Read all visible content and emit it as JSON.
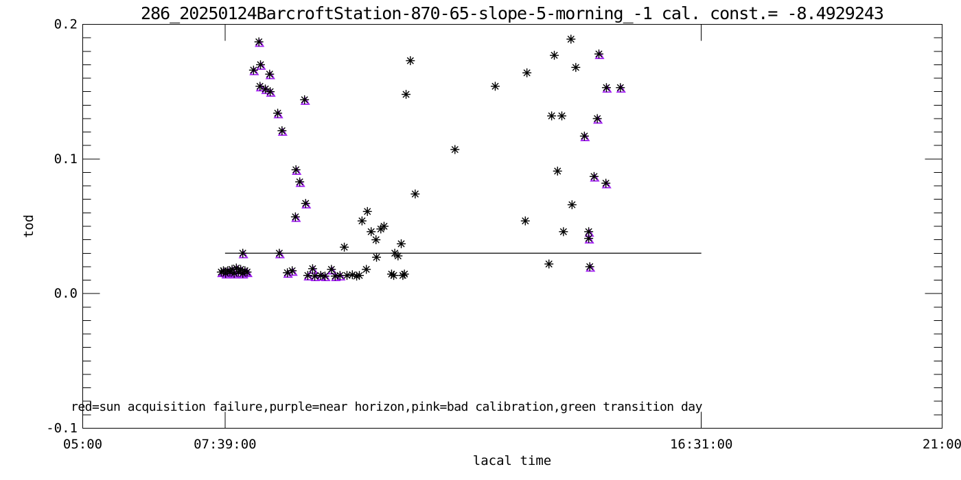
{
  "title": "286_20250124BarcroftStation-870-65-slope-5-morning_-1 cal. const.= -8.4929243",
  "annotation": "red=sun acquisition failure,purple=near horizon,pink=bad calibration,green transition day",
  "calibration_constant": "-8.4929243",
  "colors": {
    "axis": "#000000",
    "black_marker": "#000000",
    "purple_marker": "#A020F0",
    "background": "#ffffff",
    "text": "#000000"
  },
  "chart_data": {
    "type": "scatter",
    "title": "286_20250124BarcroftStation-870-65-slope-5-morning_-1 cal. const.= -8.4929243",
    "xlabel": "lacal time",
    "ylabel": "tod",
    "xlim_hours": [
      5,
      21
    ],
    "ylim": [
      -0.1,
      0.2
    ],
    "grid": false,
    "x_ticks": [
      {
        "t": 5.0,
        "label": "05:00"
      },
      {
        "t": 7.65,
        "label": "07:39:00"
      },
      {
        "t": 16.517,
        "label": "16:31:00"
      },
      {
        "t": 21.0,
        "label": "21:00"
      }
    ],
    "y_ticks": [
      {
        "v": -0.1,
        "label": "-0.1"
      },
      {
        "v": 0.0,
        "label": "0.0"
      },
      {
        "v": 0.1,
        "label": "0.1"
      },
      {
        "v": 0.2,
        "label": "0.2"
      }
    ],
    "y_minor_step": 0.01,
    "reference_line": {
      "v": 0.03,
      "t_start": 7.65,
      "t_end": 16.517
    },
    "legend_note": "red=sun acquisition failure,purple=near horizon,pink=bad calibration,green transition day",
    "series": [
      {
        "name": "near horizon (purple triangle under black asterisk)",
        "marker": "triangle+asterisk",
        "color": "#A020F0",
        "points": [
          [
            7.58,
            0.016
          ],
          [
            7.62,
            0.017
          ],
          [
            7.66,
            0.015
          ],
          [
            7.7,
            0.017
          ],
          [
            7.74,
            0.016
          ],
          [
            7.78,
            0.018
          ],
          [
            7.82,
            0.015
          ],
          [
            7.86,
            0.019
          ],
          [
            7.9,
            0.016
          ],
          [
            7.94,
            0.018
          ],
          [
            7.98,
            0.015
          ],
          [
            8.02,
            0.017
          ],
          [
            8.06,
            0.016
          ],
          [
            7.98,
            0.03
          ],
          [
            8.66,
            0.03
          ],
          [
            8.28,
            0.187
          ],
          [
            8.18,
            0.166
          ],
          [
            8.31,
            0.17
          ],
          [
            8.48,
            0.163
          ],
          [
            8.3,
            0.154
          ],
          [
            8.4,
            0.152
          ],
          [
            8.49,
            0.15
          ],
          [
            9.13,
            0.144
          ],
          [
            8.63,
            0.134
          ],
          [
            8.71,
            0.121
          ],
          [
            8.97,
            0.092
          ],
          [
            9.04,
            0.083
          ],
          [
            9.15,
            0.067
          ],
          [
            8.96,
            0.057
          ],
          [
            8.81,
            0.0155
          ],
          [
            8.9,
            0.017
          ],
          [
            9.19,
            0.0135
          ],
          [
            9.28,
            0.0185
          ],
          [
            9.32,
            0.013
          ],
          [
            9.43,
            0.0135
          ],
          [
            9.51,
            0.013
          ],
          [
            9.63,
            0.018
          ],
          [
            9.7,
            0.013
          ],
          [
            9.79,
            0.0135
          ],
          [
            14.34,
            0.117
          ],
          [
            14.42,
            0.046
          ],
          [
            14.42,
            0.041
          ],
          [
            14.44,
            0.02
          ],
          [
            14.52,
            0.087
          ],
          [
            14.58,
            0.13
          ],
          [
            14.61,
            0.178
          ],
          [
            14.74,
            0.082
          ],
          [
            14.75,
            0.153
          ],
          [
            15.01,
            0.153
          ]
        ]
      },
      {
        "name": "valid (black asterisk)",
        "marker": "asterisk",
        "color": "#000000",
        "points": [
          [
            9.92,
            0.0135
          ],
          [
            10.02,
            0.014
          ],
          [
            10.1,
            0.013
          ],
          [
            10.15,
            0.0135
          ],
          [
            10.28,
            0.018
          ],
          [
            9.87,
            0.0345
          ],
          [
            10.2,
            0.054
          ],
          [
            10.3,
            0.061
          ],
          [
            10.37,
            0.046
          ],
          [
            10.46,
            0.04
          ],
          [
            10.55,
            0.048
          ],
          [
            10.61,
            0.05
          ],
          [
            10.47,
            0.027
          ],
          [
            10.75,
            0.0145
          ],
          [
            10.79,
            0.0135
          ],
          [
            10.81,
            0.03
          ],
          [
            10.87,
            0.028
          ],
          [
            10.93,
            0.037
          ],
          [
            10.96,
            0.0135
          ],
          [
            10.99,
            0.0145
          ],
          [
            11.02,
            0.148
          ],
          [
            11.1,
            0.173
          ],
          [
            11.19,
            0.074
          ],
          [
            11.93,
            0.107
          ],
          [
            12.68,
            0.154
          ],
          [
            13.24,
            0.054
          ],
          [
            13.27,
            0.164
          ],
          [
            13.68,
            0.022
          ],
          [
            13.73,
            0.132
          ],
          [
            13.78,
            0.177
          ],
          [
            13.84,
            0.091
          ],
          [
            13.92,
            0.132
          ],
          [
            13.95,
            0.046
          ],
          [
            14.09,
            0.189
          ],
          [
            14.11,
            0.066
          ],
          [
            14.18,
            0.168
          ]
        ]
      }
    ]
  }
}
